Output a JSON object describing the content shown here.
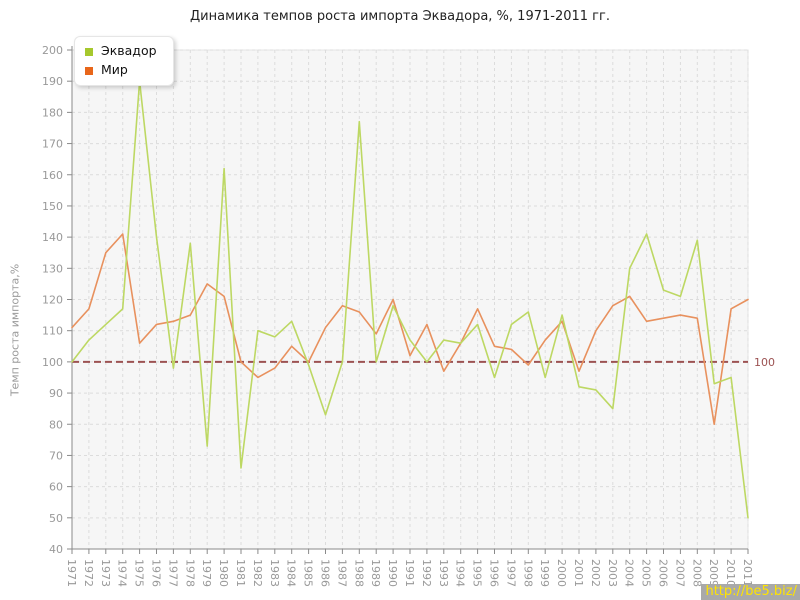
{
  "chart_data": {
    "type": "line",
    "title": "Динамика темпов роста импорта Эквадора, %, 1971-2011 гг.",
    "ylabel": "Темп роста импорта,%",
    "x": [
      "1971",
      "1972",
      "1973",
      "1974",
      "1975",
      "1976",
      "1977",
      "1978",
      "1979",
      "1980",
      "1981",
      "1982",
      "1983",
      "1984",
      "1985",
      "1986",
      "1987",
      "1988",
      "1989",
      "1990",
      "1991",
      "1992",
      "1993",
      "1994",
      "1995",
      "1996",
      "1997",
      "1998",
      "1999",
      "2000",
      "2001",
      "2002",
      "2003",
      "2004",
      "2005",
      "2006",
      "2007",
      "2008",
      "2009",
      "2010",
      "2011"
    ],
    "ylim": [
      40,
      200
    ],
    "ytick_step": 10,
    "grid": true,
    "legend_position": "top-left",
    "reference_line": {
      "value": 100,
      "label": "100",
      "color": "#9c5252"
    },
    "series": [
      {
        "name": "Эквадор",
        "color": "#bdd863",
        "swatch_color": "#a6c82d",
        "values": [
          100,
          107,
          112,
          117,
          190,
          140,
          98,
          138,
          73,
          162,
          66,
          110,
          108,
          113,
          99,
          83,
          100,
          177,
          100,
          118,
          107,
          100,
          107,
          106,
          112,
          95,
          112,
          116,
          95,
          115,
          92,
          91,
          85,
          130,
          141,
          123,
          121,
          139,
          93,
          95,
          50
        ]
      },
      {
        "name": "Мир",
        "color": "#e8915e",
        "swatch_color": "#e8661a",
        "values": [
          111,
          117,
          135,
          141,
          106,
          112,
          113,
          115,
          125,
          121,
          100,
          95,
          98,
          105,
          100,
          111,
          118,
          116,
          109,
          120,
          102,
          112,
          97,
          106,
          117,
          105,
          104,
          99,
          107,
          113,
          97,
          110,
          118,
          121,
          113,
          114,
          115,
          114,
          80,
          117,
          120
        ]
      }
    ],
    "colors": {
      "plot_bg": "#f6f6f6",
      "grid": "#dcdcdc",
      "axis": "#8a8a8a",
      "tick_text": "#999999"
    }
  },
  "watermark": {
    "text": "http://be5.biz/"
  }
}
